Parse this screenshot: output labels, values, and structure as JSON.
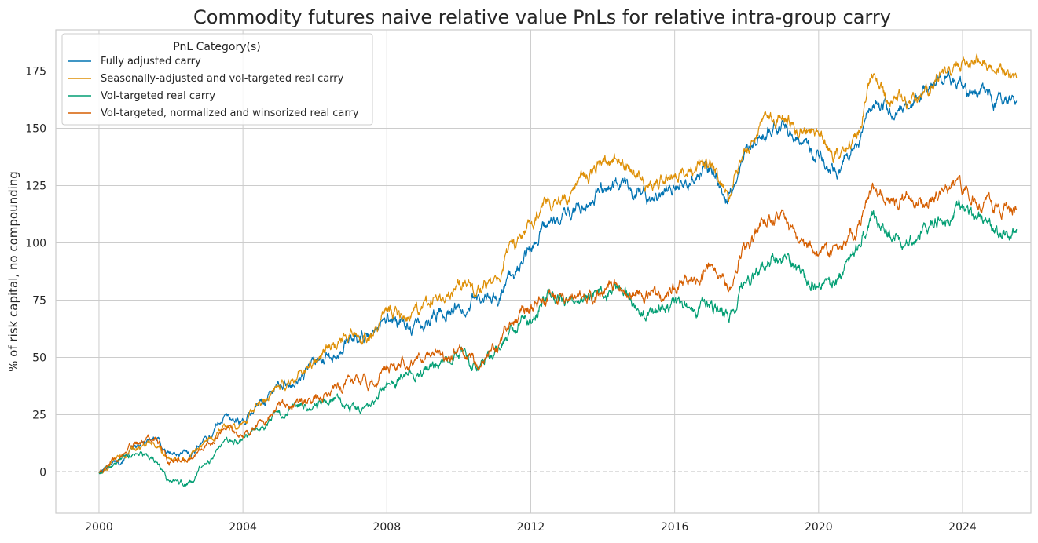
{
  "chart_data": {
    "type": "line",
    "title": "Commodity futures naive relative value PnLs for relative intra-group carry",
    "xlabel": "",
    "ylabel": "% of risk capital, no compounding",
    "xlim": [
      1998.8,
      2025.9
    ],
    "ylim": [
      -18,
      193
    ],
    "xticks": [
      2000,
      2004,
      2008,
      2012,
      2016,
      2020,
      2024
    ],
    "xtick_labels": [
      "2000",
      "2004",
      "2008",
      "2012",
      "2016",
      "2020",
      "2024"
    ],
    "yticks": [
      0,
      25,
      50,
      75,
      100,
      125,
      150,
      175
    ],
    "ytick_labels": [
      "0",
      "25",
      "50",
      "75",
      "100",
      "125",
      "150",
      "175"
    ],
    "grid": true,
    "zero_line": true,
    "legend": {
      "title": "PnL Category(s)",
      "placement": "top-left"
    },
    "x": [
      2000.0,
      2000.5,
      2001.0,
      2001.5,
      2002.0,
      2002.5,
      2003.0,
      2003.5,
      2004.0,
      2004.5,
      2005.0,
      2005.5,
      2006.0,
      2006.5,
      2007.0,
      2007.5,
      2008.0,
      2008.5,
      2009.0,
      2009.5,
      2010.0,
      2010.5,
      2011.0,
      2011.5,
      2012.0,
      2012.5,
      2013.0,
      2013.5,
      2014.0,
      2014.5,
      2015.0,
      2015.5,
      2016.0,
      2016.5,
      2017.0,
      2017.5,
      2018.0,
      2018.5,
      2019.0,
      2019.5,
      2020.0,
      2020.5,
      2021.0,
      2021.5,
      2022.0,
      2022.5,
      2023.0,
      2023.5,
      2024.0,
      2024.5,
      2025.0,
      2025.5
    ],
    "series": [
      {
        "name": "Fully adjusted carry",
        "color": "#0173b2",
        "values": [
          0,
          5,
          10,
          15,
          8,
          8,
          15,
          24,
          22,
          30,
          38,
          40,
          48,
          52,
          58,
          58,
          68,
          63,
          64,
          70,
          72,
          74,
          76,
          85,
          98,
          108,
          112,
          118,
          125,
          126,
          122,
          118,
          126,
          130,
          132,
          120,
          140,
          148,
          152,
          145,
          138,
          132,
          140,
          162,
          158,
          162,
          165,
          172,
          168,
          166,
          162,
          162
        ]
      },
      {
        "name": "Seasonally-adjusted and vol-targeted real carry",
        "color": "#de8f05",
        "values": [
          0,
          6,
          10,
          13,
          5,
          6,
          13,
          20,
          20,
          30,
          38,
          42,
          50,
          55,
          60,
          60,
          70,
          68,
          70,
          78,
          82,
          80,
          85,
          98,
          110,
          118,
          122,
          128,
          135,
          136,
          130,
          126,
          130,
          134,
          135,
          122,
          142,
          152,
          155,
          150,
          148,
          140,
          145,
          170,
          162,
          162,
          165,
          174,
          178,
          180,
          176,
          172
        ]
      },
      {
        "name": "Vol-targeted real carry",
        "color": "#029e73",
        "values": [
          0,
          4,
          8,
          5,
          -5,
          -5,
          5,
          12,
          14,
          20,
          25,
          28,
          30,
          32,
          28,
          28,
          38,
          42,
          44,
          47,
          52,
          46,
          52,
          60,
          70,
          76,
          74,
          76,
          78,
          80,
          70,
          70,
          72,
          72,
          72,
          68,
          82,
          90,
          95,
          85,
          82,
          80,
          95,
          112,
          104,
          100,
          105,
          112,
          115,
          110,
          105,
          106
        ]
      },
      {
        "name": "Vol-targeted, normalized and winsorized real carry",
        "color": "#d55e00",
        "values": [
          0,
          5,
          12,
          15,
          5,
          5,
          12,
          18,
          15,
          22,
          28,
          30,
          32,
          35,
          40,
          38,
          45,
          47,
          50,
          50,
          50,
          48,
          55,
          65,
          72,
          76,
          75,
          76,
          80,
          82,
          78,
          76,
          80,
          84,
          88,
          82,
          98,
          108,
          110,
          100,
          95,
          95,
          105,
          125,
          118,
          120,
          118,
          122,
          124,
          120,
          116,
          115
        ]
      }
    ]
  }
}
